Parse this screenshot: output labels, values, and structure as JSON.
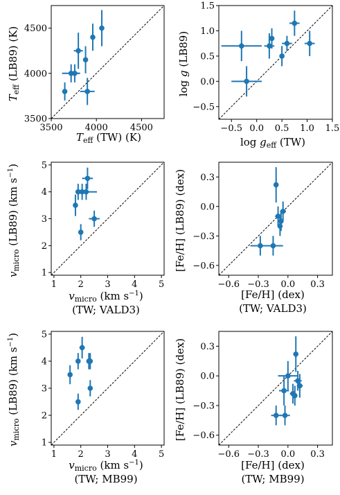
{
  "colors": {
    "points": "#1f77b4",
    "axes": "#000000"
  },
  "chart_data": [
    {
      "type": "scatter",
      "xlim": [
        3500,
        4750
      ],
      "ylim": [
        3500,
        4750
      ],
      "xticks": [
        3500,
        4000,
        4500
      ],
      "yticks": [
        3500,
        4000,
        4500
      ],
      "xticklabels": [
        "3500",
        "4000",
        "4500"
      ],
      "yticklabels": [
        "3500",
        "4000",
        "4500"
      ],
      "xlabel": "Teff (TW)  (K)",
      "ylabel": "Teff (LB89)  (K)",
      "xlabel_lines": [
        "T_eff (TW)  (K)"
      ],
      "ylabel_main": "T",
      "ylabel_sub": "eff",
      "ylabel_rest": " (LB89)  (K)",
      "xlabel_main": "T",
      "xlabel_sub": "eff",
      "xlabel_rest": " (TW)  (K)",
      "one_to_one": true,
      "points": [
        {
          "x": 3650,
          "y": 3800,
          "xerr": 0,
          "yerr": 100
        },
        {
          "x": 3720,
          "y": 4000,
          "xerr": 100,
          "yerr": 100
        },
        {
          "x": 3760,
          "y": 4000,
          "xerr": 50,
          "yerr": 100
        },
        {
          "x": 3800,
          "y": 4250,
          "xerr": 50,
          "yerr": 200
        },
        {
          "x": 3880,
          "y": 4150,
          "xerr": 0,
          "yerr": 150
        },
        {
          "x": 3900,
          "y": 3800,
          "xerr": 80,
          "yerr": 150
        },
        {
          "x": 3960,
          "y": 4400,
          "xerr": 0,
          "yerr": 150
        },
        {
          "x": 4060,
          "y": 4500,
          "xerr": 0,
          "yerr": 200
        }
      ]
    },
    {
      "type": "scatter",
      "xlim": [
        -0.75,
        1.5
      ],
      "ylim": [
        -0.75,
        1.5
      ],
      "xticks": [
        -0.5,
        0.0,
        0.5,
        1.0,
        1.5
      ],
      "yticks": [
        -0.5,
        0.0,
        0.5,
        1.0,
        1.5
      ],
      "xticklabels": [
        "−0.5",
        "0.0",
        "0.5",
        "1.0",
        "1.5"
      ],
      "yticklabels": [
        "−0.5",
        "0.0",
        "0.5",
        "1.0",
        "1.5"
      ],
      "xlabel": "log geff (TW)",
      "ylabel": "log g (LB89)",
      "ylabel_main": "log ",
      "ylabel_italic": "g",
      "ylabel_rest": " (LB89)",
      "xlabel_main": "log ",
      "xlabel_italic": "g",
      "xlabel_sub": "eff",
      "xlabel_rest": " (TW)",
      "one_to_one": true,
      "points": [
        {
          "x": -0.3,
          "y": 0.7,
          "xerr": 0.4,
          "yerr": 0.3
        },
        {
          "x": -0.2,
          "y": 0.0,
          "xerr": 0.3,
          "yerr": 0.3
        },
        {
          "x": 0.25,
          "y": 0.7,
          "xerr": 0.1,
          "yerr": 0.25
        },
        {
          "x": 0.3,
          "y": 0.85,
          "xerr": 0.05,
          "yerr": 0.2
        },
        {
          "x": 0.5,
          "y": 0.5,
          "xerr": 0.05,
          "yerr": 0.2
        },
        {
          "x": 0.6,
          "y": 0.75,
          "xerr": 0.1,
          "yerr": 0.15
        },
        {
          "x": 0.75,
          "y": 1.15,
          "xerr": 0.1,
          "yerr": 0.25
        },
        {
          "x": 1.05,
          "y": 0.75,
          "xerr": 0.1,
          "yerr": 0.25
        }
      ]
    },
    {
      "type": "scatter",
      "xlim": [
        0.9,
        5.1
      ],
      "ylim": [
        0.9,
        5.1
      ],
      "xticks": [
        1,
        2,
        3,
        4,
        5
      ],
      "yticks": [
        1,
        2,
        3,
        4,
        5
      ],
      "xticklabels": [
        "1",
        "2",
        "3",
        "4",
        "5"
      ],
      "yticklabels": [
        "1",
        "2",
        "3",
        "4",
        "5"
      ],
      "xlabel": "vmicro (km s−1) (TW; VALD3)",
      "ylabel": "vmicro (LB89)  (km s−1)",
      "xlabel_line2": "(TW; VALD3)",
      "one_to_one": true,
      "points": [
        {
          "x": 1.8,
          "y": 3.5,
          "xerr": 0.05,
          "yerr": 0.4
        },
        {
          "x": 1.9,
          "y": 4.0,
          "xerr": 0.1,
          "yerr": 0.3
        },
        {
          "x": 2.0,
          "y": 2.5,
          "xerr": 0.05,
          "yerr": 0.3
        },
        {
          "x": 2.05,
          "y": 4.0,
          "xerr": 0.15,
          "yerr": 0.3
        },
        {
          "x": 2.2,
          "y": 4.0,
          "xerr": 0.4,
          "yerr": 0.3
        },
        {
          "x": 2.25,
          "y": 4.5,
          "xerr": 0.2,
          "yerr": 0.4
        },
        {
          "x": 2.5,
          "y": 3.0,
          "xerr": 0.2,
          "yerr": 0.3
        }
      ]
    },
    {
      "type": "scatter",
      "xlim": [
        -0.7,
        0.45
      ],
      "ylim": [
        -0.7,
        0.45
      ],
      "xticks": [
        -0.6,
        -0.3,
        0.0,
        0.3
      ],
      "yticks": [
        -0.6,
        -0.3,
        0.0,
        0.3
      ],
      "xticklabels": [
        "−0.6",
        "−0.3",
        "0.0",
        "0.3"
      ],
      "yticklabels": [
        "−0.6",
        "−0.3",
        "0.0",
        "0.3"
      ],
      "xlabel": "[Fe/H]  (dex) (TW; VALD3)",
      "ylabel": "[Fe/H] (LB89)  (dex)",
      "xlabel_line1": "[Fe/H]  (dex)",
      "xlabel_line2": "(TW; VALD3)",
      "one_to_one": true,
      "points": [
        {
          "x": -0.28,
          "y": -0.4,
          "xerr": 0.1,
          "yerr": 0.1
        },
        {
          "x": -0.15,
          "y": -0.4,
          "xerr": 0.1,
          "yerr": 0.1
        },
        {
          "x": -0.12,
          "y": 0.22,
          "xerr": 0.02,
          "yerr": 0.18
        },
        {
          "x": -0.1,
          "y": -0.1,
          "xerr": 0.03,
          "yerr": 0.1
        },
        {
          "x": -0.08,
          "y": -0.2,
          "xerr": 0.02,
          "yerr": 0.1
        },
        {
          "x": -0.07,
          "y": -0.15,
          "xerr": 0.02,
          "yerr": 0.1
        },
        {
          "x": -0.05,
          "y": -0.05,
          "xerr": 0.03,
          "yerr": 0.1
        }
      ]
    },
    {
      "type": "scatter",
      "xlim": [
        0.9,
        5.1
      ],
      "ylim": [
        0.9,
        5.1
      ],
      "xticks": [
        1,
        2,
        3,
        4,
        5
      ],
      "yticks": [
        1,
        2,
        3,
        4,
        5
      ],
      "xticklabels": [
        "1",
        "2",
        "3",
        "4",
        "5"
      ],
      "yticklabels": [
        "1",
        "2",
        "3",
        "4",
        "5"
      ],
      "xlabel": "vmicro (km s−1) (TW; MB99)",
      "ylabel": "vmicro (LB89)  (km s−1)",
      "xlabel_line2": "(TW; MB99)",
      "one_to_one": true,
      "points": [
        {
          "x": 1.6,
          "y": 3.5,
          "xerr": 0.05,
          "yerr": 0.35
        },
        {
          "x": 1.9,
          "y": 2.5,
          "xerr": 0.05,
          "yerr": 0.3
        },
        {
          "x": 1.9,
          "y": 4.0,
          "xerr": 0.05,
          "yerr": 0.3
        },
        {
          "x": 2.05,
          "y": 4.5,
          "xerr": 0.1,
          "yerr": 0.4
        },
        {
          "x": 2.3,
          "y": 4.0,
          "xerr": 0.05,
          "yerr": 0.3
        },
        {
          "x": 2.35,
          "y": 3.0,
          "xerr": 0.05,
          "yerr": 0.3
        },
        {
          "x": 2.35,
          "y": 4.0,
          "xerr": 0.05,
          "yerr": 0.3
        }
      ]
    },
    {
      "type": "scatter",
      "xlim": [
        -0.7,
        0.45
      ],
      "ylim": [
        -0.7,
        0.45
      ],
      "xticks": [
        -0.6,
        -0.3,
        0.0,
        0.3
      ],
      "yticks": [
        -0.6,
        -0.3,
        0.0,
        0.3
      ],
      "xticklabels": [
        "−0.6",
        "−0.3",
        "0.0",
        "0.3"
      ],
      "yticklabels": [
        "−0.6",
        "−0.3",
        "0.0",
        "0.3"
      ],
      "xlabel": "[Fe/H]  (dex) (TW; MB99)",
      "ylabel": "[Fe/H] (LB89)  (dex)",
      "xlabel_line1": "[Fe/H]  (dex)",
      "xlabel_line2": "(TW; MB99)",
      "one_to_one": true,
      "points": [
        {
          "x": -0.12,
          "y": -0.4,
          "xerr": 0.05,
          "yerr": 0.1
        },
        {
          "x": -0.04,
          "y": -0.15,
          "xerr": 0.05,
          "yerr": 0.15
        },
        {
          "x": -0.03,
          "y": -0.4,
          "xerr": 0.05,
          "yerr": 0.1
        },
        {
          "x": 0.0,
          "y": 0.0,
          "xerr": 0.1,
          "yerr": 0.15
        },
        {
          "x": 0.05,
          "y": -0.18,
          "xerr": 0.03,
          "yerr": 0.1
        },
        {
          "x": 0.07,
          "y": -0.2,
          "xerr": 0.02,
          "yerr": 0.1
        },
        {
          "x": 0.08,
          "y": 0.22,
          "xerr": 0.02,
          "yerr": 0.18
        },
        {
          "x": 0.1,
          "y": -0.05,
          "xerr": 0.04,
          "yerr": 0.1
        },
        {
          "x": 0.12,
          "y": -0.1,
          "xerr": 0.03,
          "yerr": 0.12
        }
      ]
    }
  ]
}
